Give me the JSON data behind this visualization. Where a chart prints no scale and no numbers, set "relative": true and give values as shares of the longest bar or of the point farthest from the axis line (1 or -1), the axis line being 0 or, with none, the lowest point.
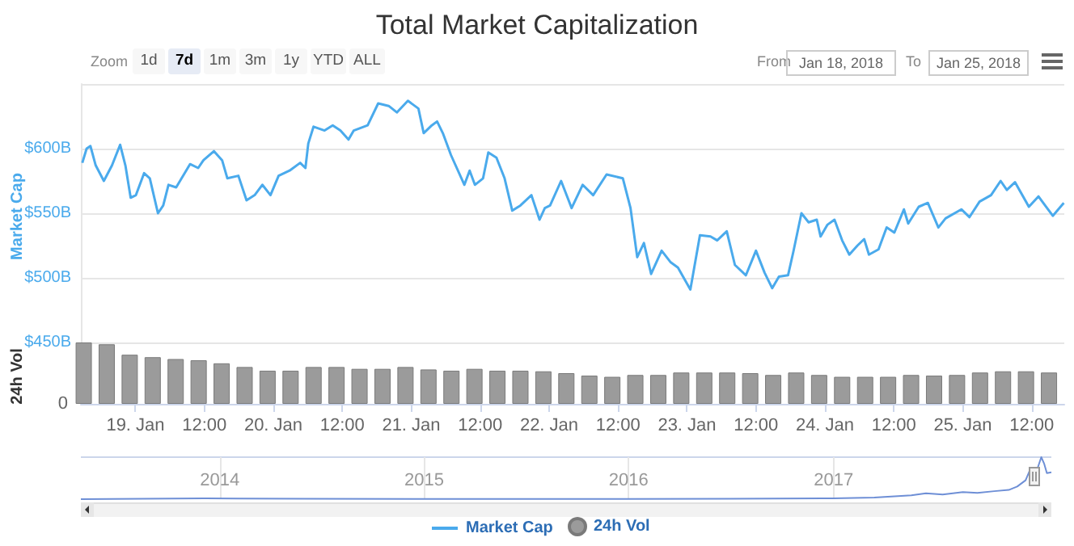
{
  "chart_data": [
    {
      "type": "line",
      "title": "Total Market Capitalization",
      "ylabel": "Market Cap",
      "annotations": [
        "Zoom",
        "1d",
        "7d",
        "1m",
        "3m",
        "1y",
        "YTD",
        "ALL",
        "From",
        "Jan 18, 2018",
        "To",
        "Jan 25, 2018"
      ],
      "xlim": [
        "2018-01-18T14:30",
        "2018-01-25T17:40"
      ],
      "ylim": [
        450,
        650
      ],
      "yticks": [
        {
          "value": 450,
          "label": "$450B"
        },
        {
          "value": 500,
          "label": "$500B"
        },
        {
          "value": 550,
          "label": "$550B"
        },
        {
          "value": 600,
          "label": "$600B"
        },
        {
          "value": 650,
          "label": null
        }
      ],
      "grid": "y",
      "legend": "bottom",
      "tick_labels": "y",
      "x": [
        "2018-01-18T14:45",
        "2018-01-18T15:30",
        "2018-01-18T16:10",
        "2018-01-18T17:05",
        "2018-01-18T18:30",
        "2018-01-18T19:55",
        "2018-01-18T21:20",
        "2018-01-18T22:15",
        "2018-01-18T23:10",
        "2018-01-19T00:05",
        "2018-01-19T01:30",
        "2018-01-19T02:30",
        "2018-01-19T03:55",
        "2018-01-19T04:50",
        "2018-01-19T05:45",
        "2018-01-19T07:05",
        "2018-01-19T09:30",
        "2018-01-19T10:55",
        "2018-01-19T11:50",
        "2018-01-19T13:40",
        "2018-01-19T15:05",
        "2018-01-19T16:00",
        "2018-01-19T17:55",
        "2018-01-19T19:20",
        "2018-01-19T20:45",
        "2018-01-19T22:05",
        "2018-01-19T23:30",
        "2018-01-20T00:55",
        "2018-01-20T02:50",
        "2018-01-20T04:40",
        "2018-01-20T05:35",
        "2018-01-20T06:05",
        "2018-01-20T07:00",
        "2018-01-20T08:55",
        "2018-01-20T10:20",
        "2018-01-20T11:40",
        "2018-01-20T13:05",
        "2018-01-20T14:00",
        "2018-01-20T16:25",
        "2018-01-20T18:15",
        "2018-01-20T20:05",
        "2018-01-20T21:30",
        "2018-01-20T23:25",
        "2018-01-21T01:15",
        "2018-01-21T02:10",
        "2018-01-21T03:35",
        "2018-01-21T04:30",
        "2018-01-21T05:30",
        "2018-01-21T06:55",
        "2018-01-21T09:15",
        "2018-01-21T10:10",
        "2018-01-21T11:05",
        "2018-01-21T12:30",
        "2018-01-21T13:25",
        "2018-01-21T14:50",
        "2018-01-21T16:15",
        "2018-01-21T17:35",
        "2018-01-21T19:00",
        "2018-01-21T20:55",
        "2018-01-21T22:20",
        "2018-01-21T23:15",
        "2018-01-22T00:10",
        "2018-01-22T02:05",
        "2018-01-22T03:55",
        "2018-01-22T05:50",
        "2018-01-22T07:40",
        "2018-01-22T10:00",
        "2018-01-22T12:50",
        "2018-01-22T14:10",
        "2018-01-22T15:20",
        "2018-01-22T16:30",
        "2018-01-22T17:45",
        "2018-01-22T19:35",
        "2018-01-22T21:10",
        "2018-01-22T22:25",
        "2018-01-23T00:35",
        "2018-01-23T02:15",
        "2018-01-23T04:05",
        "2018-01-23T05:15",
        "2018-01-23T06:55",
        "2018-01-23T08:20",
        "2018-01-23T10:15",
        "2018-01-23T12:00",
        "2018-01-23T13:30",
        "2018-01-23T14:50",
        "2018-01-23T16:00",
        "2018-01-23T17:35",
        "2018-01-23T18:30",
        "2018-01-23T19:55",
        "2018-01-23T21:10",
        "2018-01-23T22:35",
        "2018-01-23T23:15",
        "2018-01-24T00:25",
        "2018-01-24T01:40",
        "2018-01-24T03:00",
        "2018-01-24T04:15",
        "2018-01-24T05:40",
        "2018-01-24T06:50",
        "2018-01-24T07:40",
        "2018-01-24T09:20",
        "2018-01-24T10:45",
        "2018-01-24T12:05",
        "2018-01-24T13:45",
        "2018-01-24T14:30",
        "2018-01-24T16:20",
        "2018-01-24T17:55",
        "2018-01-24T19:45",
        "2018-01-24T21:00",
        "2018-01-24T23:45",
        "2018-01-25T01:10",
        "2018-01-25T02:55",
        "2018-01-25T04:55",
        "2018-01-25T06:35",
        "2018-01-25T07:40",
        "2018-01-25T09:05",
        "2018-01-25T11:30",
        "2018-01-25T13:10",
        "2018-01-25T15:40",
        "2018-01-25T17:35"
      ],
      "series": [
        {
          "name": "Market Cap",
          "color": "#4aaaec",
          "values": [
            589,
            600,
            602,
            587,
            575,
            587,
            603,
            587,
            562,
            564,
            581,
            577,
            550,
            556,
            572,
            570,
            588,
            585,
            591,
            598,
            591,
            577,
            579,
            560,
            564,
            572,
            564,
            579,
            583,
            589,
            585,
            604,
            617,
            614,
            618,
            614,
            607,
            614,
            618,
            635,
            633,
            628,
            637,
            631,
            612,
            618,
            621,
            612,
            595,
            572,
            583,
            572,
            577,
            597,
            593,
            577,
            552,
            556,
            564,
            545,
            554,
            556,
            575,
            554,
            572,
            564,
            580,
            577,
            554,
            516,
            527,
            503,
            521,
            512,
            508,
            491,
            533,
            532,
            529,
            536,
            510,
            502,
            521,
            504,
            492,
            501,
            502,
            520,
            550,
            543,
            545,
            532,
            541,
            545,
            529,
            518,
            525,
            530,
            518,
            522,
            539,
            535,
            553,
            542,
            555,
            558,
            539,
            546,
            553,
            547,
            559,
            564,
            575,
            568,
            574,
            555,
            563,
            548,
            558
          ]
        }
      ]
    },
    {
      "type": "bar",
      "ylabel": "24h Vol",
      "annotations": [
        "0"
      ],
      "relative": true,
      "legend": "bottom",
      "tick_labels": "x",
      "xlim": [
        "2018-01-18T14:30",
        "2018-01-25T17:40"
      ],
      "xticks": [
        {
          "value": "2018-01-19T00:00",
          "label": "19. Jan"
        },
        {
          "value": "2018-01-19T12:00",
          "label": "12:00"
        },
        {
          "value": "2018-01-20T00:00",
          "label": "20. Jan"
        },
        {
          "value": "2018-01-20T12:00",
          "label": "12:00"
        },
        {
          "value": "2018-01-21T00:00",
          "label": "21. Jan"
        },
        {
          "value": "2018-01-21T12:00",
          "label": "12:00"
        },
        {
          "value": "2018-01-22T00:00",
          "label": "22. Jan"
        },
        {
          "value": "2018-01-22T12:00",
          "label": "12:00"
        },
        {
          "value": "2018-01-23T00:00",
          "label": "23. Jan"
        },
        {
          "value": "2018-01-23T12:00",
          "label": "12:00"
        },
        {
          "value": "2018-01-24T00:00",
          "label": "24. Jan"
        },
        {
          "value": "2018-01-24T12:00",
          "label": "12:00"
        },
        {
          "value": "2018-01-25T00:00",
          "label": "25. Jan"
        },
        {
          "value": "2018-01-25T12:00",
          "label": "12:00"
        }
      ],
      "x": [
        "2018-01-18T15:00",
        "2018-01-18T19:00",
        "2018-01-18T23:00",
        "2018-01-19T03:00",
        "2018-01-19T07:00",
        "2018-01-19T11:00",
        "2018-01-19T15:00",
        "2018-01-19T19:00",
        "2018-01-19T23:00",
        "2018-01-20T03:00",
        "2018-01-20T07:00",
        "2018-01-20T11:00",
        "2018-01-20T15:00",
        "2018-01-20T19:00",
        "2018-01-20T23:00",
        "2018-01-21T03:00",
        "2018-01-21T07:00",
        "2018-01-21T11:00",
        "2018-01-21T15:00",
        "2018-01-21T19:00",
        "2018-01-21T23:00",
        "2018-01-22T03:00",
        "2018-01-22T07:00",
        "2018-01-22T11:00",
        "2018-01-22T15:00",
        "2018-01-22T19:00",
        "2018-01-22T23:00",
        "2018-01-23T03:00",
        "2018-01-23T07:00",
        "2018-01-23T11:00",
        "2018-01-23T15:00",
        "2018-01-23T19:00",
        "2018-01-23T23:00",
        "2018-01-24T03:00",
        "2018-01-24T07:00",
        "2018-01-24T11:00",
        "2018-01-24T15:00",
        "2018-01-24T19:00",
        "2018-01-24T23:00",
        "2018-01-25T03:00",
        "2018-01-25T07:00",
        "2018-01-25T11:00",
        "2018-01-25T15:00"
      ],
      "series": [
        {
          "name": "24h Vol",
          "color": "#9b9b9b",
          "values": [
            1,
            0.97,
            0.8,
            0.76,
            0.73,
            0.71,
            0.66,
            0.6,
            0.54,
            0.54,
            0.6,
            0.6,
            0.57,
            0.57,
            0.6,
            0.56,
            0.54,
            0.57,
            0.54,
            0.54,
            0.53,
            0.5,
            0.46,
            0.44,
            0.47,
            0.47,
            0.51,
            0.51,
            0.51,
            0.5,
            0.47,
            0.51,
            0.47,
            0.44,
            0.44,
            0.44,
            0.47,
            0.46,
            0.47,
            0.51,
            0.53,
            0.53,
            0.51
          ]
        }
      ]
    },
    {
      "type": "line",
      "relative": true,
      "grid": "x",
      "tick_labels": "x",
      "color": "#6e8fd6",
      "xlim": [
        "2013-04-28",
        "2018-01-25"
      ],
      "xticks": [
        {
          "value": "2014-01-01",
          "label": "2014"
        },
        {
          "value": "2015-01-01",
          "label": "2015"
        },
        {
          "value": "2016-01-01",
          "label": "2016"
        },
        {
          "value": "2017-01-01",
          "label": "2017"
        }
      ],
      "x": [
        "2013-04-28",
        "2013-12-05",
        "2014-02-01",
        "2014-06-01",
        "2015-01-15",
        "2016-01-01",
        "2016-07-01",
        "2017-01-01",
        "2017-03-15",
        "2017-05-20",
        "2017-06-15",
        "2017-07-15",
        "2017-08-20",
        "2017-09-15",
        "2017-10-15",
        "2017-11-10",
        "2017-11-25",
        "2017-12-10",
        "2017-12-17",
        "2017-12-22",
        "2017-12-28",
        "2018-01-07",
        "2018-01-12",
        "2018-01-17",
        "2018-01-25"
      ],
      "values": [
        0,
        0.02,
        0.015,
        0.008,
        0.004,
        0.006,
        0.01,
        0.02,
        0.04,
        0.09,
        0.14,
        0.11,
        0.17,
        0.15,
        0.19,
        0.22,
        0.3,
        0.45,
        0.67,
        0.55,
        0.6,
        1,
        0.85,
        0.62,
        0.64
      ]
    }
  ]
}
